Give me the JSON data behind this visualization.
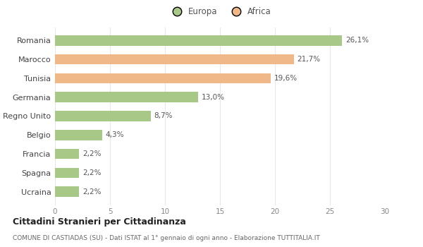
{
  "categories": [
    "Ucraina",
    "Spagna",
    "Francia",
    "Belgio",
    "Regno Unito",
    "Germania",
    "Tunisia",
    "Marocco",
    "Romania"
  ],
  "values": [
    2.2,
    2.2,
    2.2,
    4.3,
    8.7,
    13.0,
    19.6,
    21.7,
    26.1
  ],
  "labels": [
    "2,2%",
    "2,2%",
    "2,2%",
    "4,3%",
    "8,7%",
    "13,0%",
    "19,6%",
    "21,7%",
    "26,1%"
  ],
  "colors": [
    "#a8c888",
    "#a8c888",
    "#a8c888",
    "#a8c888",
    "#a8c888",
    "#a8c888",
    "#f0b888",
    "#f0b888",
    "#a8c888"
  ],
  "europa_color": "#a8c888",
  "africa_color": "#f0b888",
  "xlim": [
    0,
    30
  ],
  "xticks": [
    0,
    5,
    10,
    15,
    20,
    25,
    30
  ],
  "title": "Cittadini Stranieri per Cittadinanza",
  "subtitle": "COMUNE DI CASTIADAS (SU) - Dati ISTAT al 1° gennaio di ogni anno - Elaborazione TUTTITALIA.IT",
  "background_color": "#ffffff",
  "grid_color": "#e8e8e8"
}
